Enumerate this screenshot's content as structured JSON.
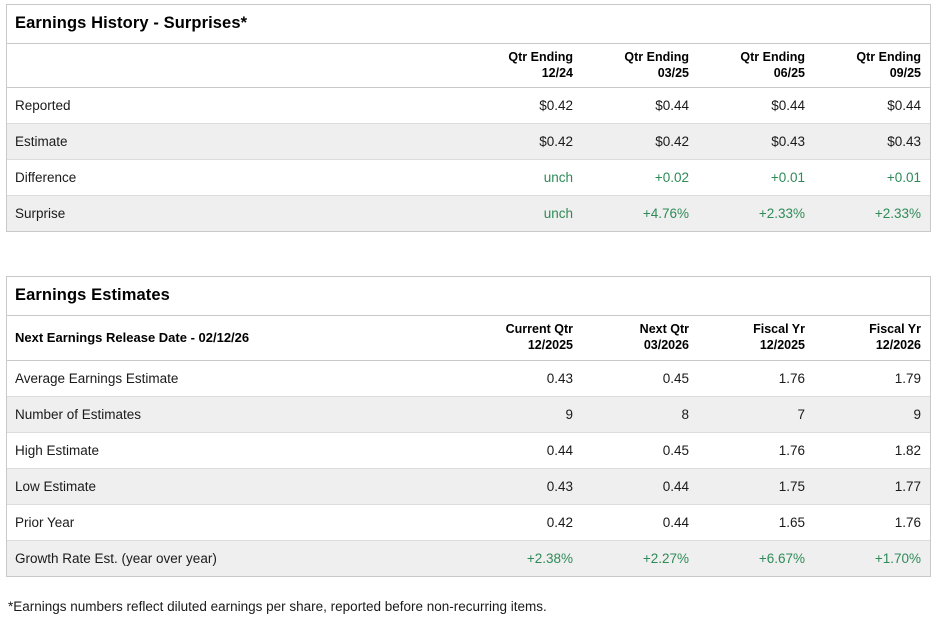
{
  "colors": {
    "green": "#2e8b57",
    "row_alt": "#efefef",
    "border": "#c9c9c9",
    "text": "#1a1a1a"
  },
  "earnings_history": {
    "title": "Earnings History - Surprises*",
    "columns": [
      {
        "line1": "Qtr Ending",
        "line2": "12/24"
      },
      {
        "line1": "Qtr Ending",
        "line2": "03/25"
      },
      {
        "line1": "Qtr Ending",
        "line2": "06/25"
      },
      {
        "line1": "Qtr Ending",
        "line2": "09/25"
      }
    ],
    "rows": [
      {
        "label": "Reported",
        "values": [
          "$0.42",
          "$0.44",
          "$0.44",
          "$0.44"
        ],
        "green": false
      },
      {
        "label": "Estimate",
        "values": [
          "$0.42",
          "$0.42",
          "$0.43",
          "$0.43"
        ],
        "green": false
      },
      {
        "label": "Difference",
        "values": [
          "unch",
          "+0.02",
          "+0.01",
          "+0.01"
        ],
        "green": true
      },
      {
        "label": "Surprise",
        "values": [
          "unch",
          "+4.76%",
          "+2.33%",
          "+2.33%"
        ],
        "green": true
      }
    ]
  },
  "earnings_estimates": {
    "title": "Earnings Estimates",
    "header_label": "Next Earnings Release Date - 02/12/26",
    "columns": [
      {
        "line1": "Current Qtr",
        "line2": "12/2025"
      },
      {
        "line1": "Next Qtr",
        "line2": "03/2026"
      },
      {
        "line1": "Fiscal Yr",
        "line2": "12/2025"
      },
      {
        "line1": "Fiscal Yr",
        "line2": "12/2026"
      }
    ],
    "rows": [
      {
        "label": "Average Earnings Estimate",
        "values": [
          "0.43",
          "0.45",
          "1.76",
          "1.79"
        ],
        "green": false
      },
      {
        "label": "Number of Estimates",
        "values": [
          "9",
          "8",
          "7",
          "9"
        ],
        "green": false
      },
      {
        "label": "High Estimate",
        "values": [
          "0.44",
          "0.45",
          "1.76",
          "1.82"
        ],
        "green": false
      },
      {
        "label": "Low Estimate",
        "values": [
          "0.43",
          "0.44",
          "1.75",
          "1.77"
        ],
        "green": false
      },
      {
        "label": "Prior Year",
        "values": [
          "0.42",
          "0.44",
          "1.65",
          "1.76"
        ],
        "green": false
      },
      {
        "label": "Growth Rate Est. (year over year)",
        "values": [
          "+2.38%",
          "+2.27%",
          "+6.67%",
          "+1.70%"
        ],
        "green": true
      }
    ]
  },
  "footnote": "*Earnings numbers reflect diluted earnings per share, reported before non-recurring items."
}
